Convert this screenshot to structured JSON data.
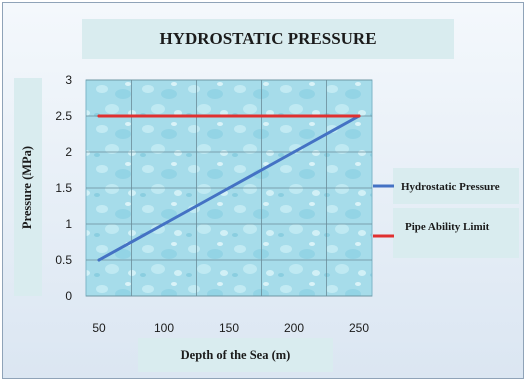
{
  "chart_data": {
    "type": "line",
    "title": "HYDROSTATIC PRESSURE",
    "xlabel": "Depth of the Sea (m)",
    "ylabel": "Pressure (MPa)",
    "x_ticks": [
      "50",
      "100",
      "150",
      "200",
      "250"
    ],
    "y_ticks": [
      "0",
      "0.5",
      "1",
      "1.5",
      "2",
      "2.5",
      "3"
    ],
    "xlim": [
      40,
      260
    ],
    "ylim": [
      0,
      3
    ],
    "grid": true,
    "legend_position": "right",
    "series": [
      {
        "name": "Hydrostatic Pressure",
        "color": "#4472c4",
        "x": [
          50,
          100,
          150,
          200,
          250
        ],
        "y": [
          0.5,
          1.0,
          1.5,
          2.0,
          2.5
        ]
      },
      {
        "name": "Pipe Ability Limit",
        "color": "#e03030",
        "x": [
          50,
          100,
          150,
          200,
          250
        ],
        "y": [
          2.5,
          2.5,
          2.5,
          2.5,
          2.5
        ]
      }
    ]
  }
}
